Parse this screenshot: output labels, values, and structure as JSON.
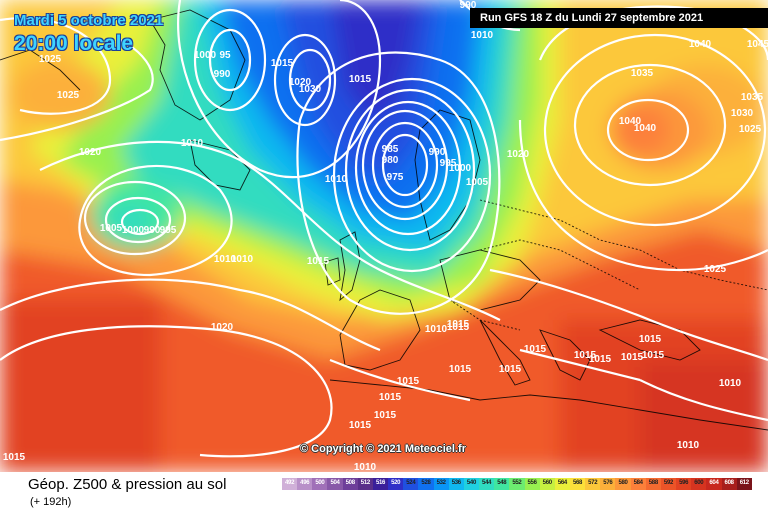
{
  "header": {
    "date_line": "Mardi 5 octobre 2021",
    "time_line": "20:00 locale",
    "run_info": "Run GFS 18 Z du Lundi 27 septembre 2021"
  },
  "footer": {
    "title": "Géop. Z500 & pression au sol",
    "forecast_hour": "(+ 192h)",
    "copyright": "© Copyright © 2021 Meteociel.fr"
  },
  "legend": {
    "values": [
      "492",
      "496",
      "500",
      "504",
      "508",
      "512",
      "516",
      "520",
      "524",
      "528",
      "532",
      "536",
      "540",
      "544",
      "548",
      "552",
      "556",
      "560",
      "564",
      "568",
      "572",
      "576",
      "580",
      "584",
      "588",
      "592",
      "596",
      "600",
      "604",
      "608",
      "612"
    ],
    "colors": [
      "#d0b0d8",
      "#b890c8",
      "#a070b8",
      "#8858a8",
      "#6e3f9a",
      "#5a2f8a",
      "#3a1f9a",
      "#2f2fc8",
      "#2050e0",
      "#1070f0",
      "#0a95f5",
      "#10b8f0",
      "#20d0e0",
      "#30dcc0",
      "#40e6a0",
      "#6cec70",
      "#98f050",
      "#c6f040",
      "#eaf03a",
      "#fce03a",
      "#fcc83a",
      "#fcb03a",
      "#fc983a",
      "#fc803a",
      "#f46a30",
      "#ec5428",
      "#e24222",
      "#d63420",
      "#c8281e",
      "#a81e1c",
      "#7a141a"
    ]
  },
  "isobar_labels": [
    {
      "text": "1025"
    },
    {
      "text": "1025"
    },
    {
      "text": "1020"
    },
    {
      "text": "1000"
    },
    {
      "text": "95"
    },
    {
      "text": "990"
    },
    {
      "text": "1015"
    },
    {
      "text": "1020"
    },
    {
      "text": "1030"
    },
    {
      "text": "1015"
    },
    {
      "text": "1010"
    },
    {
      "text": "1010"
    },
    {
      "text": "985"
    },
    {
      "text": "980"
    },
    {
      "text": "975"
    },
    {
      "text": "990"
    },
    {
      "text": "995"
    },
    {
      "text": "1000"
    },
    {
      "text": "1005"
    },
    {
      "text": "1010"
    },
    {
      "text": "1015"
    },
    {
      "text": "1005"
    },
    {
      "text": "1000"
    },
    {
      "text": "990"
    },
    {
      "text": "995"
    },
    {
      "text": "1010"
    },
    {
      "text": "1020"
    },
    {
      "text": "1015"
    },
    {
      "text": "1010"
    },
    {
      "text": "1015"
    },
    {
      "text": "1015"
    },
    {
      "text": "1015"
    },
    {
      "text": "1015"
    },
    {
      "text": "1015"
    },
    {
      "text": "1015"
    },
    {
      "text": "1015"
    },
    {
      "text": "1015"
    },
    {
      "text": "1010"
    },
    {
      "text": "1015"
    },
    {
      "text": "1015"
    },
    {
      "text": "1015"
    },
    {
      "text": "1020"
    },
    {
      "text": "1040"
    },
    {
      "text": "1045"
    },
    {
      "text": "1035"
    },
    {
      "text": "1040"
    },
    {
      "text": "1040"
    },
    {
      "text": "1035"
    },
    {
      "text": "1030"
    },
    {
      "text": "1025"
    },
    {
      "text": "1025"
    },
    {
      "text": "1015"
    },
    {
      "text": "1015"
    },
    {
      "text": "1010"
    },
    {
      "text": "1010"
    },
    {
      "text": "1015"
    },
    {
      "text": "990"
    },
    {
      "text": "1010"
    }
  ]
}
